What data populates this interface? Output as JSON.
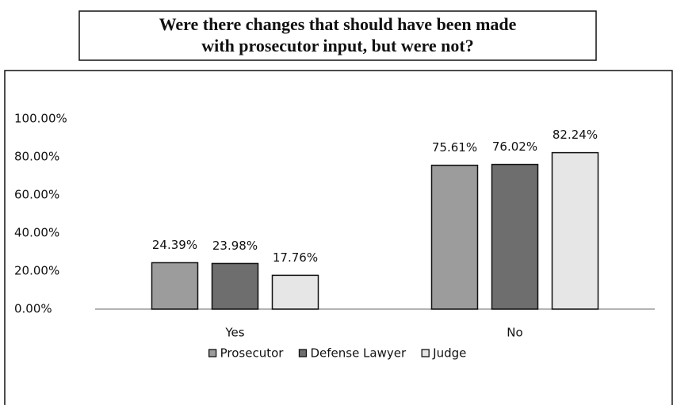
{
  "chart_data": {
    "type": "bar",
    "title": "Were there changes that should have been made with prosecutor input, but were not?",
    "title_lines": [
      "Were there changes that should have been made",
      "with prosecutor input, but were not?"
    ],
    "categories": [
      "Yes",
      "No"
    ],
    "series": [
      {
        "name": "Prosecutor",
        "color": "#9c9c9c",
        "values": [
          24.39,
          75.61
        ],
        "value_labels": [
          "24.39%",
          "75.61%"
        ]
      },
      {
        "name": "Defense Lawyer",
        "color": "#6e6e6e",
        "values": [
          23.98,
          76.02
        ],
        "value_labels": [
          "23.98%",
          "76.02%"
        ]
      },
      {
        "name": "Judge",
        "color": "#e6e6e6",
        "values": [
          17.76,
          82.24
        ],
        "value_labels": [
          "17.76%",
          "82.24%"
        ]
      }
    ],
    "ylim": [
      0,
      100
    ],
    "yticks": [
      {
        "value": 0,
        "label": "0.00%"
      },
      {
        "value": 20,
        "label": "20.00%"
      },
      {
        "value": 40,
        "label": "40.00%"
      },
      {
        "value": 60,
        "label": "60.00%"
      },
      {
        "value": 80,
        "label": "80.00%"
      },
      {
        "value": 100,
        "label": "100.00%"
      }
    ],
    "grid": false,
    "legend": "bottom"
  }
}
